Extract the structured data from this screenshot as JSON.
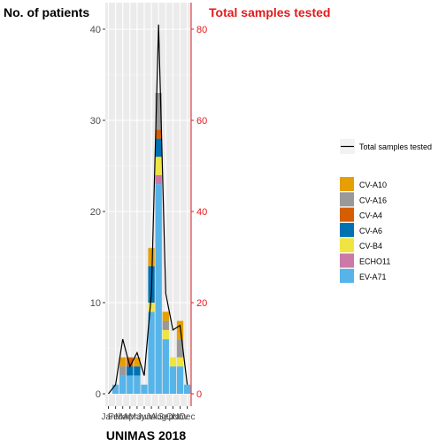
{
  "chart_data": {
    "type": "bar",
    "title": "UNIMAS 2018",
    "ylabel_left": "No. of patients",
    "ylabel_right": "Total samples tested",
    "ylim_left": [
      0,
      42
    ],
    "ylim_right": [
      0,
      84
    ],
    "left_ticks": [
      "0",
      "10",
      "20",
      "30",
      "40"
    ],
    "right_ticks": [
      "0",
      "20",
      "40",
      "60",
      "80"
    ],
    "categories": [
      "Jan",
      "Feb",
      "Mar",
      "Apr",
      "May",
      "Jun",
      "Jul",
      "Aug",
      "Sep",
      "Oct",
      "Nov",
      "Dec"
    ],
    "category_labels_printed": [
      "Jan",
      "Feb",
      "Mar",
      "Apr",
      "May",
      "Jun",
      "Jul",
      "Aug",
      "Sep",
      "Oct",
      "Nov",
      "Dec"
    ],
    "series": [
      {
        "name": "EV-A71",
        "color": "#56B4E9",
        "values": [
          0,
          1,
          2,
          2,
          2,
          1,
          9,
          23,
          6,
          3,
          3,
          1
        ]
      },
      {
        "name": "ECHO11",
        "color": "#CC79A7",
        "values": [
          0,
          0,
          0,
          0,
          0,
          0,
          0,
          1,
          0,
          0,
          0,
          0
        ]
      },
      {
        "name": "CV-B4",
        "color": "#F0E442",
        "values": [
          0,
          0,
          0,
          0,
          0,
          0,
          1,
          2,
          1,
          1,
          1,
          0
        ]
      },
      {
        "name": "CV-A6",
        "color": "#0072B2",
        "values": [
          0,
          0,
          0,
          1,
          1,
          0,
          4,
          2,
          0,
          0,
          0,
          0
        ]
      },
      {
        "name": "CV-A4",
        "color": "#D55E00",
        "values": [
          0,
          0,
          0,
          1,
          0,
          0,
          0,
          1,
          0,
          0,
          0,
          0
        ]
      },
      {
        "name": "CV-A16",
        "color": "#999999",
        "values": [
          0,
          0,
          1,
          0,
          0,
          0,
          0,
          4,
          1,
          0,
          2,
          0
        ]
      },
      {
        "name": "CV-A10",
        "color": "#E69F00",
        "values": [
          0,
          0,
          1,
          0,
          1,
          0,
          2,
          0,
          1,
          0,
          2,
          0
        ]
      }
    ],
    "line": {
      "name": "Total samples tested",
      "color": "#000000",
      "values": [
        0,
        2,
        12,
        6,
        9,
        4,
        22,
        81,
        22,
        14,
        15,
        2
      ]
    },
    "grid": true,
    "legend_position": "right"
  },
  "legend": {
    "line_label": "Total samples tested"
  }
}
